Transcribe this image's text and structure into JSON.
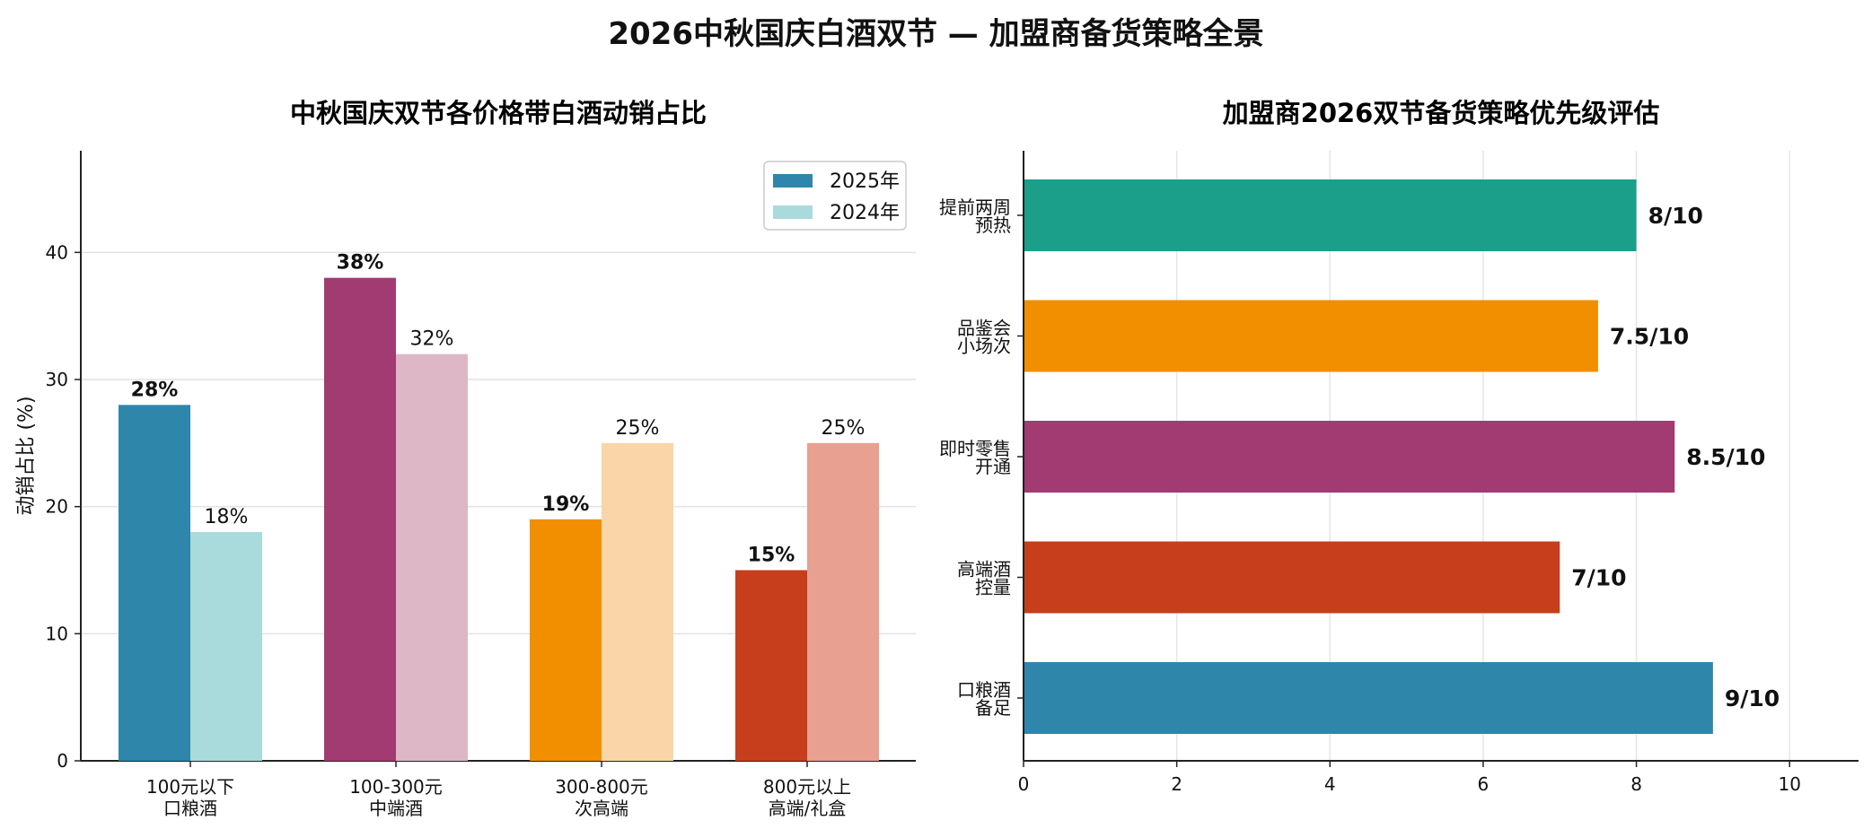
{
  "title": "2026中秋国庆白酒双节 — 加盟商备货策略全景",
  "chart_data": [
    {
      "type": "bar",
      "title": "中秋国庆双节各价格带白酒动销占比",
      "ylabel": "动销占比 (%)",
      "ylim": [
        0,
        48
      ],
      "yticks": [
        0,
        10,
        20,
        30,
        40
      ],
      "grid": true,
      "legend_position": "top-right",
      "categories": [
        [
          "100元以下",
          "口粮酒"
        ],
        [
          "100-300元",
          "中端酒"
        ],
        [
          "300-800元",
          "次高端"
        ],
        [
          "800元以上",
          "高端/礼盒"
        ]
      ],
      "series": [
        {
          "name": "2025年",
          "values": [
            28,
            38,
            19,
            15
          ],
          "labels": [
            "28%",
            "38%",
            "19%",
            "15%"
          ],
          "colors": [
            "#2e86ab",
            "#a23b72",
            "#f18f01",
            "#c73e1d"
          ]
        },
        {
          "name": "2024年",
          "values": [
            18,
            32,
            25,
            25
          ],
          "labels": [
            "18%",
            "32%",
            "25%",
            "25%"
          ],
          "colors": [
            "#a9dadc",
            "#ddb7c6",
            "#f9d5a7",
            "#e8a090"
          ]
        }
      ],
      "legend_colors": [
        "#2e86ab",
        "#a9dadc"
      ]
    },
    {
      "type": "bar",
      "orientation": "horizontal",
      "title": "加盟商2026双节备货策略优先级评估",
      "xlim": [
        0,
        10.9
      ],
      "xticks": [
        0,
        2,
        4,
        6,
        8,
        10
      ],
      "grid": true,
      "categories": [
        [
          "提前两周",
          "预热"
        ],
        [
          "品鉴会",
          "小场次"
        ],
        [
          "即时零售",
          "开通"
        ],
        [
          "高端酒",
          "控量"
        ],
        [
          "口粮酒",
          "备足"
        ]
      ],
      "values": [
        8,
        7.5,
        8.5,
        7,
        9
      ],
      "labels": [
        "8/10",
        "7.5/10",
        "8.5/10",
        "7/10",
        "9/10"
      ],
      "colors": [
        "#1b9e8a",
        "#f18f01",
        "#a23b72",
        "#c73e1d",
        "#2e86ab"
      ]
    }
  ]
}
